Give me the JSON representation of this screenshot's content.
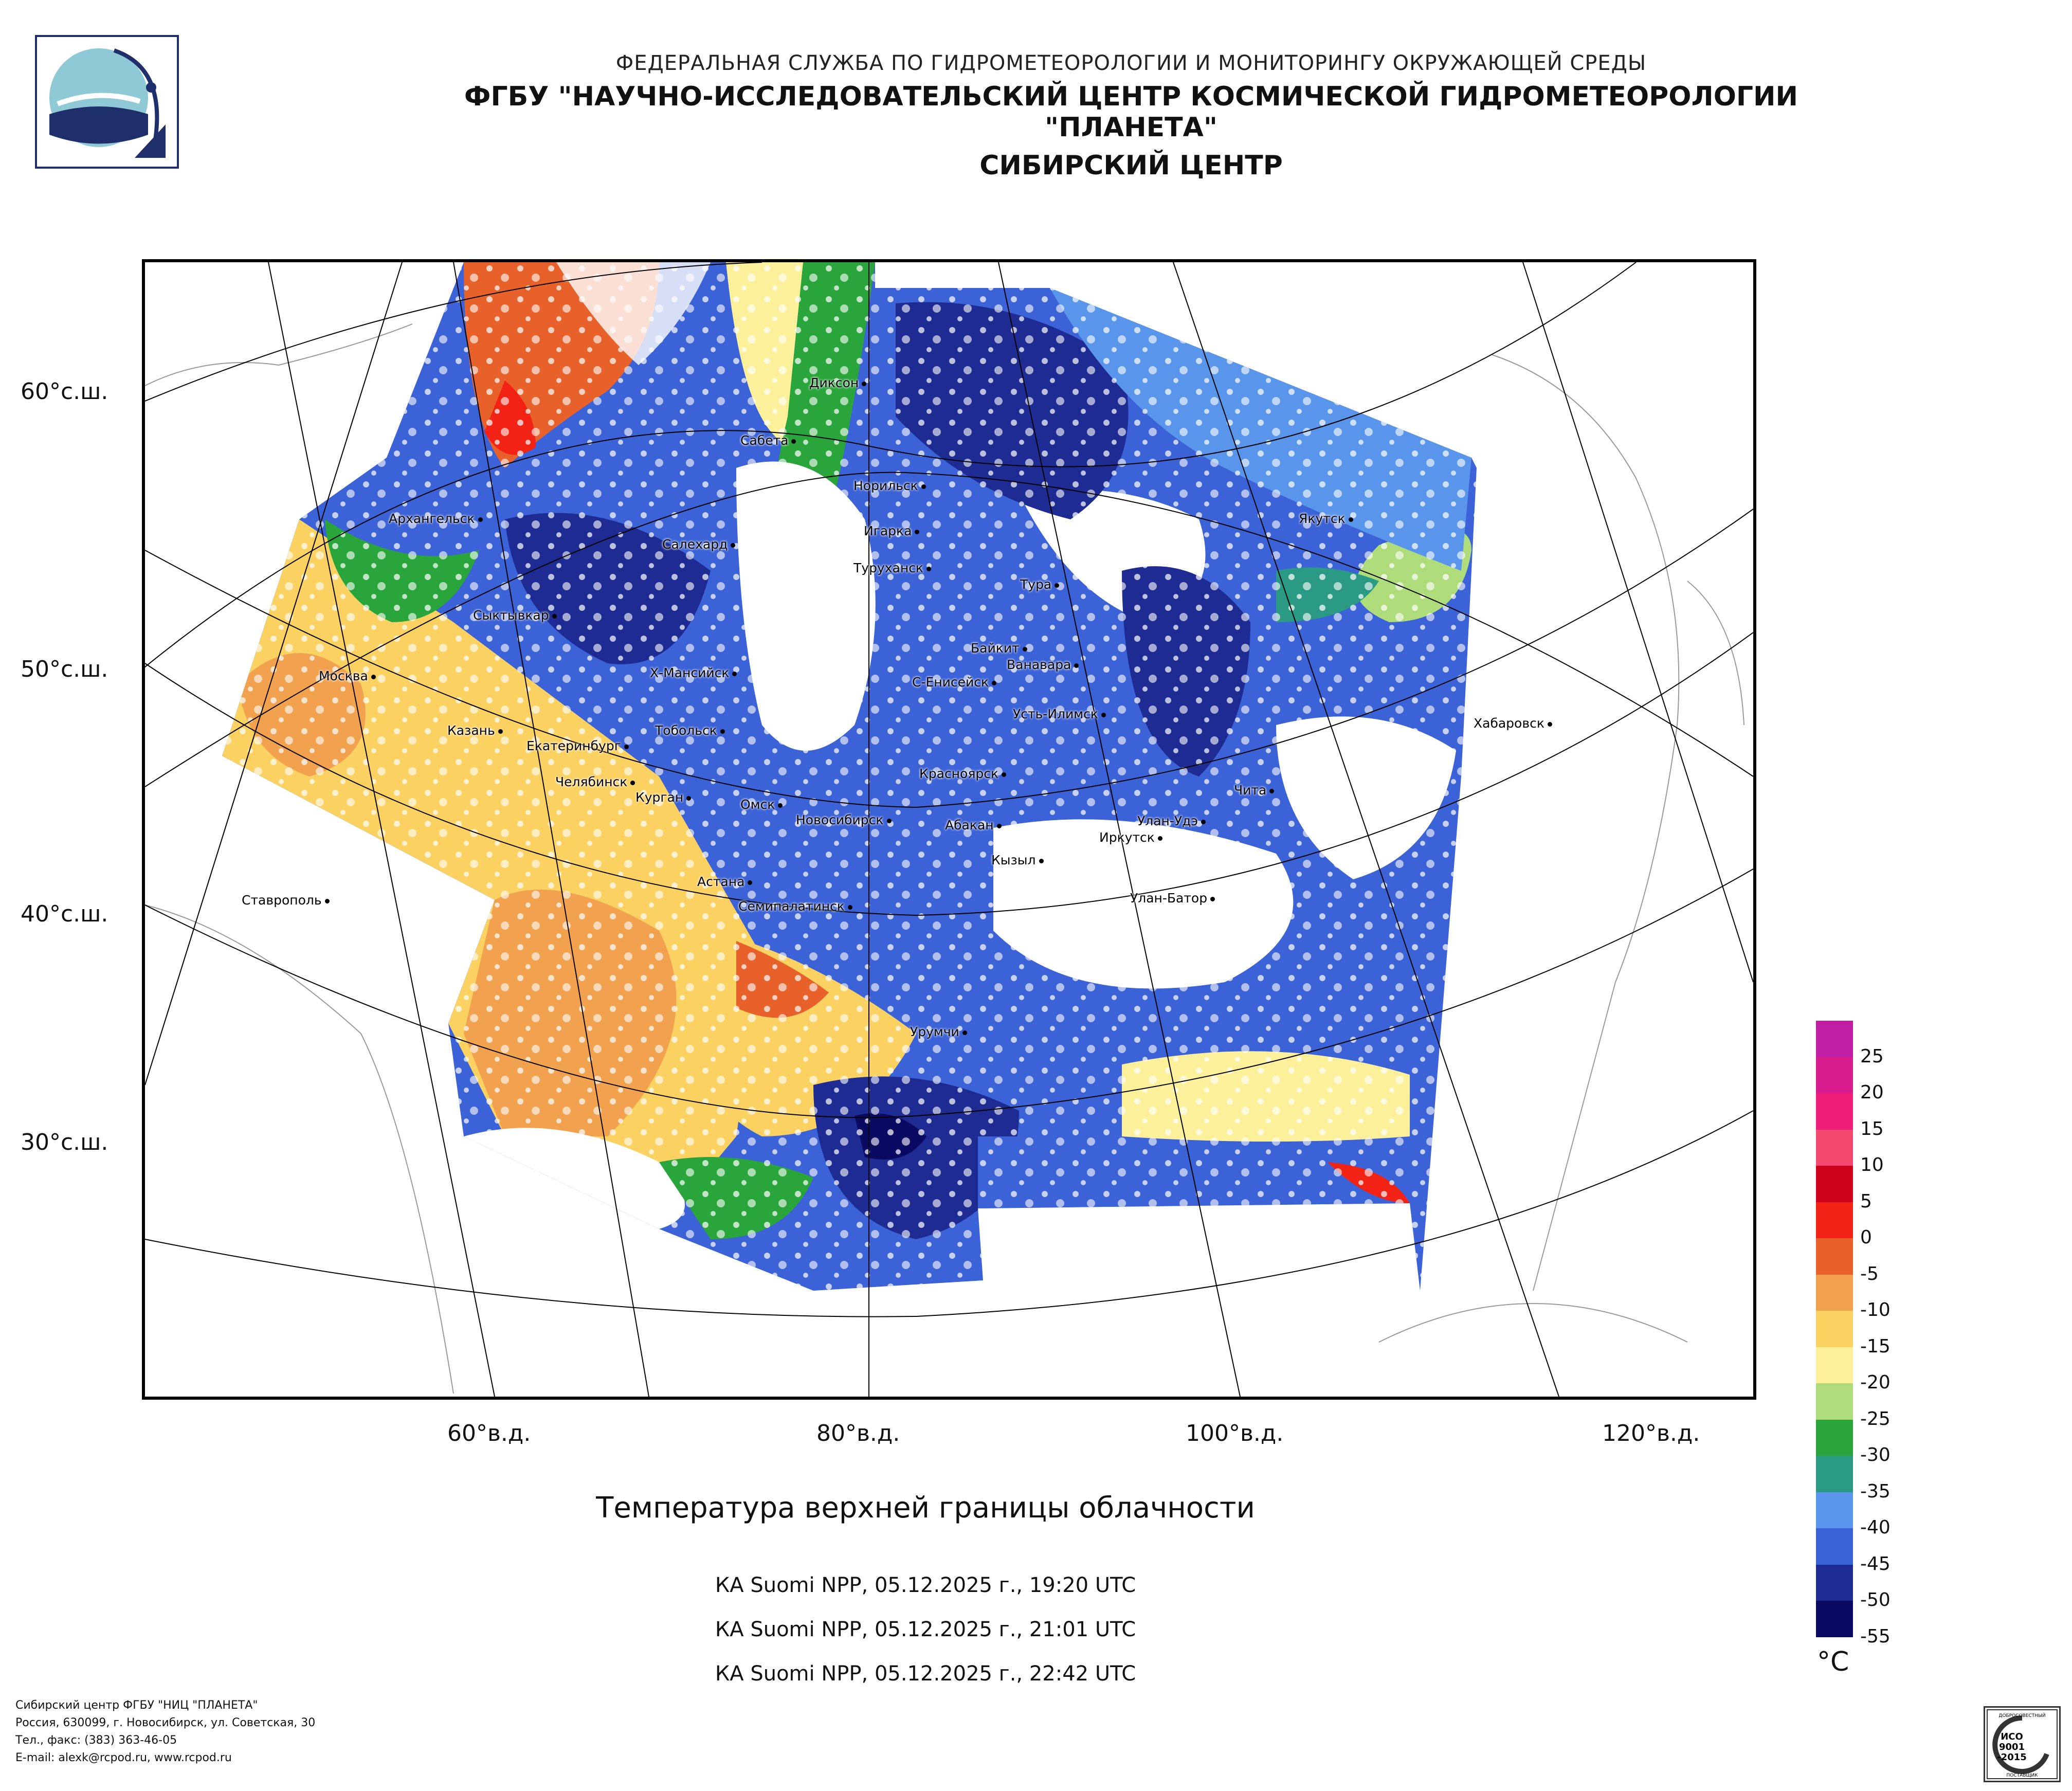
{
  "header": {
    "line1": "ФЕДЕРАЛЬНАЯ СЛУЖБА ПО ГИДРОМЕТЕОРОЛОГИИ И МОНИТОРИНГУ ОКРУЖАЮЩЕЙ СРЕДЫ",
    "line2": "ФГБУ \"НАУЧНО-ИССЛЕДОВАТЕЛЬСКИЙ ЦЕНТР КОСМИЧЕСКОЙ ГИДРОМЕТЕОРОЛОГИИ \"ПЛАНЕТА\"",
    "line3": "СИБИРСКИЙ ЦЕНТР"
  },
  "map": {
    "lat_labels": [
      "60°с.ш.",
      "50°с.ш.",
      "40°с.ш.",
      "30°с.ш."
    ],
    "lon_labels": [
      "60°в.д.",
      "80°в.д.",
      "100°в.д.",
      "120°в.д."
    ],
    "cities": [
      "Диксон",
      "Сабета",
      "Норильск",
      "Якутск",
      "Архангельск",
      "Салехард",
      "Игарка",
      "Туруханск",
      "Тура",
      "Сыктывкар",
      "Байкит",
      "Ванавара",
      "Москва",
      "Х-Мансийск",
      "С-Енисейск",
      "Усть-Илимск",
      "Хабаровск",
      "Казань",
      "Тобольск",
      "Екатеринбург",
      "Красноярск",
      "Челябинск",
      "Курган",
      "Омск",
      "Новосибирск",
      "Чита",
      "Абакан",
      "Улан-Удэ",
      "Иркутск",
      "Кызыл",
      "Астана",
      "Улан-Батор",
      "Ставрополь",
      "Семипалатинск",
      "Урумчи"
    ]
  },
  "title": "Температура верхней границы облачности",
  "passes": [
    "КА Suomi NPP, 05.12.2025 г., 19:20 UTC",
    "КА Suomi NPP, 05.12.2025 г., 21:01 UTC",
    "КА Suomi NPP, 05.12.2025 г., 22:42 UTC"
  ],
  "legend": {
    "unit": "°C",
    "ticks": [
      "25",
      "20",
      "15",
      "10",
      "5",
      "0",
      "-5",
      "-10",
      "-15",
      "-20",
      "-25",
      "-30",
      "-35",
      "-40",
      "-45",
      "-50",
      "-55"
    ],
    "colors": [
      "#c21ea3",
      "#d81b8e",
      "#ef1d7a",
      "#f2476e",
      "#d0021b",
      "#f22314",
      "#e8612b",
      "#f2a24f",
      "#fbd161",
      "#fdf09b",
      "#afdc7a",
      "#2aa53c",
      "#2a9a84",
      "#5995ea",
      "#3b62d6",
      "#1e2b92",
      "#0a0a63"
    ]
  },
  "footer": {
    "line1": "Сибирский центр ФГБУ \"НИЦ \"ПЛАНЕТА\"",
    "line2": "Россия, 630099, г. Новосибирск, ул. Советская, 30",
    "line3": "Тел., факс: (383) 363-46-05",
    "line4": "E-mail: alexk@rcpod.ru, www.rcpod.ru"
  },
  "iso_badge": {
    "top": "ДОБРОСОВЕСТНЫЙ",
    "l1": "ИСО",
    "l2": "9001",
    "l3": "-2015",
    "bottom": "ПОСТАВЩИК"
  }
}
